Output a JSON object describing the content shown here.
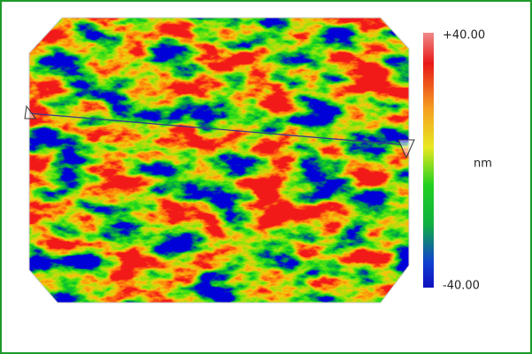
{
  "colorbar": {
    "max_label": "+40.00",
    "unit": "nm",
    "min_label": "-40.00"
  }
}
